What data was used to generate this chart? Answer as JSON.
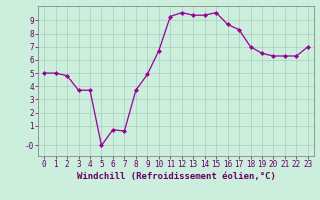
{
  "x": [
    0,
    1,
    2,
    3,
    4,
    5,
    6,
    7,
    8,
    9,
    10,
    11,
    12,
    13,
    14,
    15,
    16,
    17,
    18,
    19,
    20,
    21,
    22,
    23
  ],
  "y": [
    5.0,
    5.0,
    4.8,
    3.7,
    3.7,
    -0.5,
    0.7,
    0.6,
    3.7,
    4.9,
    6.7,
    9.3,
    9.6,
    9.4,
    9.4,
    9.6,
    8.7,
    8.3,
    7.0,
    6.5,
    6.3,
    6.3,
    6.3,
    7.0
  ],
  "line_color": "#990099",
  "marker": "D",
  "marker_size": 2.0,
  "background_color": "#cceedd",
  "grid_color": "#aaccbb",
  "xlabel": "Windchill (Refroidissement éolien,°C)",
  "xlabel_fontsize": 6.5,
  "ytick_vals": [
    -0.5,
    1,
    2,
    3,
    4,
    5,
    6,
    7,
    8,
    9
  ],
  "ytick_labels": [
    "-0",
    "1",
    "2",
    "3",
    "4",
    "5",
    "6",
    "7",
    "8",
    "9"
  ],
  "ylim": [
    -1.3,
    10.1
  ],
  "xlim": [
    -0.5,
    23.5
  ],
  "xtick_labels": [
    "0",
    "1",
    "2",
    "3",
    "4",
    "5",
    "6",
    "7",
    "8",
    "9",
    "10",
    "11",
    "12",
    "13",
    "14",
    "15",
    "16",
    "17",
    "18",
    "19",
    "20",
    "21",
    "22",
    "23"
  ],
  "tick_fontsize": 5.5,
  "line_width": 0.9
}
